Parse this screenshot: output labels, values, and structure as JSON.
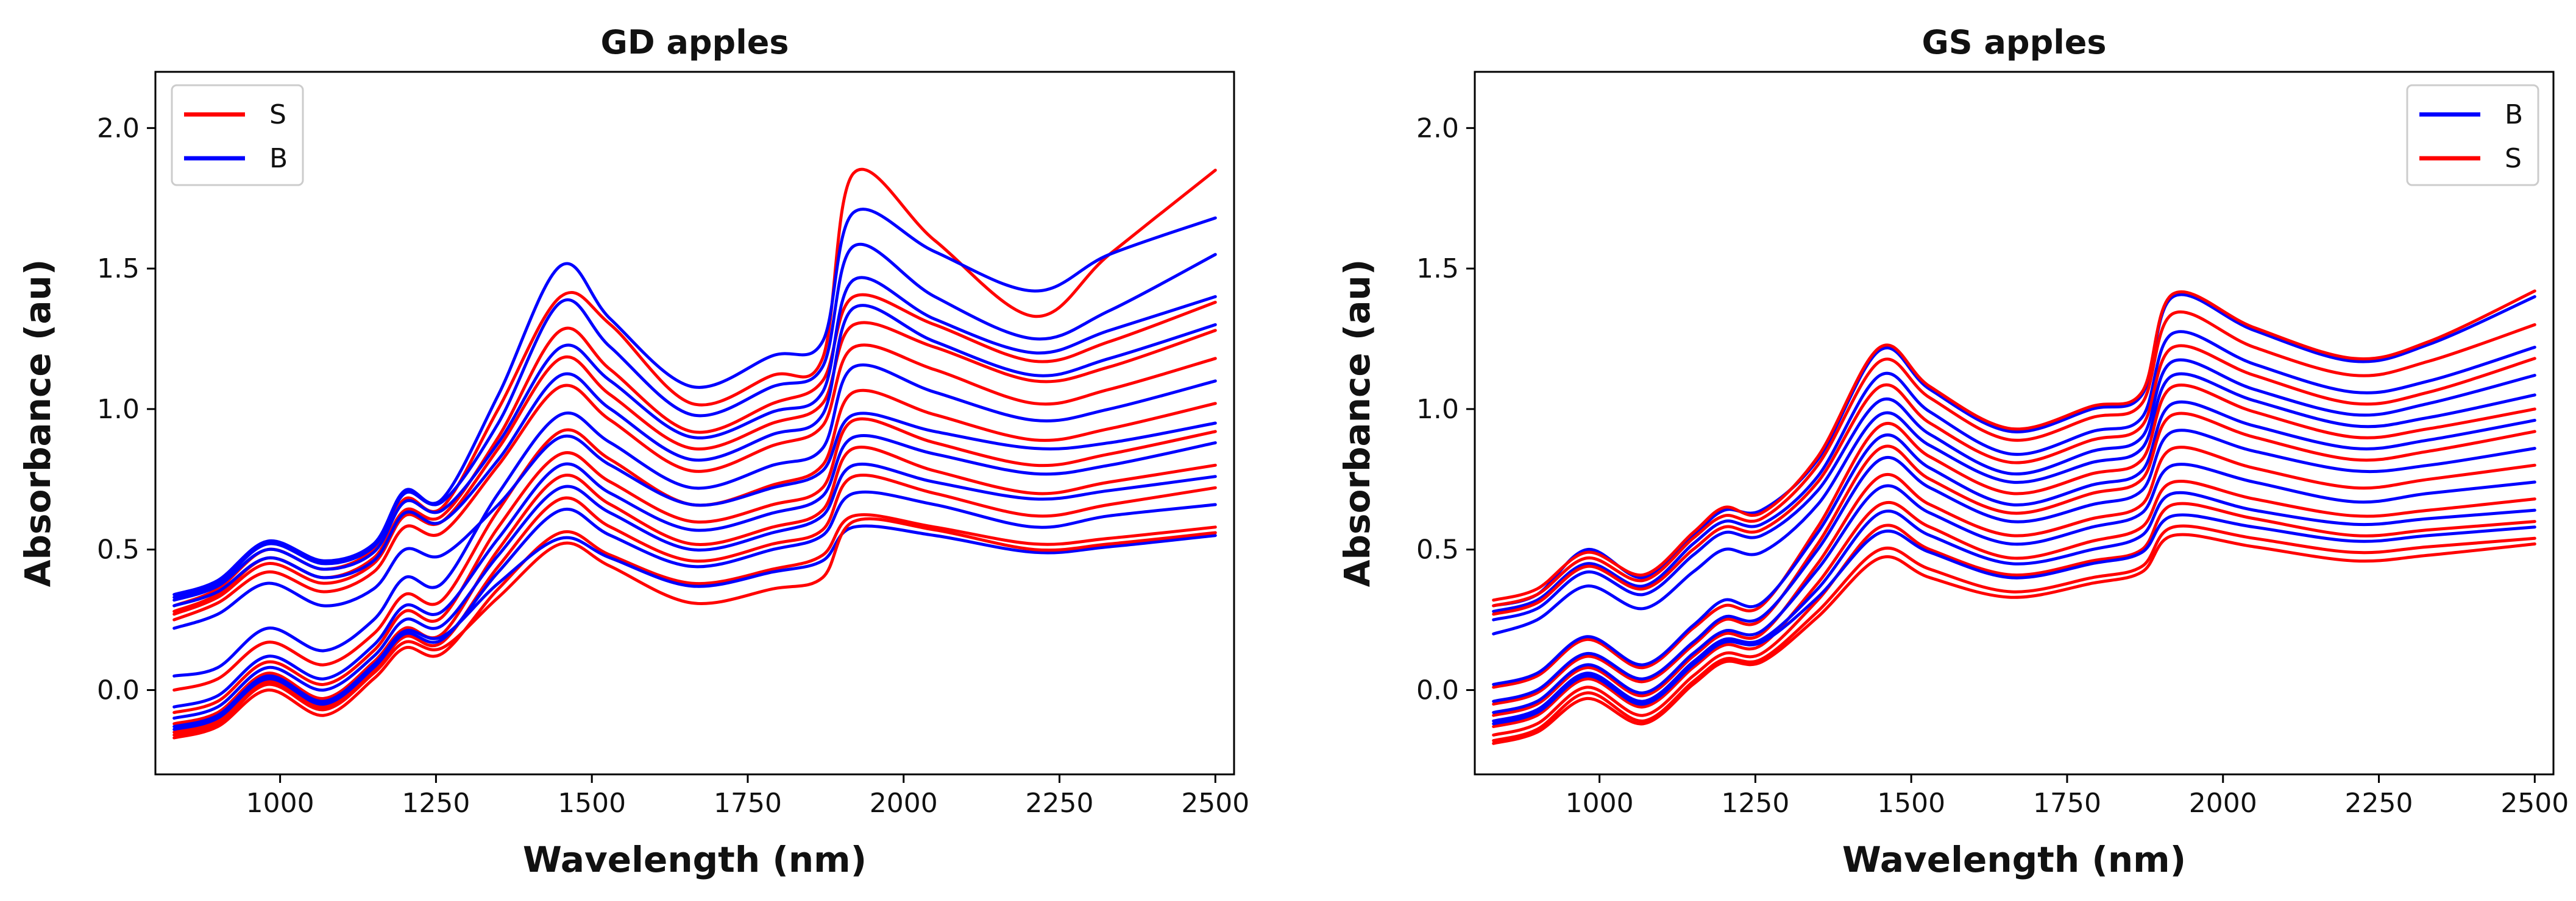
{
  "chart_data": [
    {
      "type": "line",
      "title": "GD apples",
      "xlabel": "Wavelength (nm)",
      "ylabel": "Absorbance (au)",
      "xlim": [
        800,
        2530
      ],
      "ylim": [
        -0.3,
        2.2
      ],
      "xticks": [
        1000,
        1250,
        1500,
        1750,
        2000,
        2250,
        2500
      ],
      "yticks": [
        0.0,
        0.5,
        1.0,
        1.5,
        2.0
      ],
      "xtick_labels": [
        "1000",
        "1250",
        "1500",
        "1750",
        "2000",
        "2250",
        "2500"
      ],
      "ytick_labels": [
        "0.0",
        "0.5",
        "1.0",
        "1.5",
        "2.0"
      ],
      "legend_position": "top-left",
      "legend": [
        {
          "label": "S",
          "color": "#ff0000"
        },
        {
          "label": "B",
          "color": "#0000ff"
        }
      ],
      "wavelengths": [
        830,
        900,
        980,
        1070,
        1150,
        1200,
        1260,
        1350,
        1450,
        1530,
        1660,
        1790,
        1870,
        1920,
        2050,
        2210,
        2330,
        2500
      ],
      "series": [
        {
          "name": "S",
          "color": "#ff0000",
          "values": [
            0.3,
            0.36,
            0.5,
            0.43,
            0.5,
            0.68,
            0.65,
            1.0,
            1.4,
            1.3,
            1.02,
            1.12,
            1.18,
            1.84,
            1.6,
            1.33,
            1.55,
            1.85
          ]
        },
        {
          "name": "B",
          "color": "#0000ff",
          "values": [
            0.34,
            0.39,
            0.53,
            0.46,
            0.52,
            0.71,
            0.68,
            1.05,
            1.51,
            1.32,
            1.08,
            1.19,
            1.24,
            1.7,
            1.56,
            1.42,
            1.55,
            1.68
          ]
        },
        {
          "name": "B",
          "color": "#0000ff",
          "values": [
            0.33,
            0.38,
            0.52,
            0.45,
            0.51,
            0.7,
            0.67,
            0.95,
            1.38,
            1.22,
            0.98,
            1.08,
            1.15,
            1.58,
            1.4,
            1.25,
            1.35,
            1.55
          ]
        },
        {
          "name": "S",
          "color": "#ff0000",
          "values": [
            0.28,
            0.34,
            0.47,
            0.4,
            0.47,
            0.64,
            0.62,
            0.9,
            1.28,
            1.14,
            0.92,
            1.02,
            1.1,
            1.4,
            1.3,
            1.17,
            1.24,
            1.38
          ]
        },
        {
          "name": "B",
          "color": "#0000ff",
          "values": [
            0.32,
            0.37,
            0.5,
            0.43,
            0.49,
            0.67,
            0.64,
            0.88,
            1.22,
            1.1,
            0.9,
            0.99,
            1.06,
            1.46,
            1.32,
            1.2,
            1.28,
            1.4
          ]
        },
        {
          "name": "S",
          "color": "#ff0000",
          "values": [
            0.27,
            0.33,
            0.45,
            0.38,
            0.45,
            0.62,
            0.6,
            0.86,
            1.18,
            1.05,
            0.86,
            0.95,
            1.02,
            1.3,
            1.22,
            1.1,
            1.15,
            1.28
          ]
        },
        {
          "name": "B",
          "color": "#0000ff",
          "values": [
            0.3,
            0.35,
            0.47,
            0.4,
            0.46,
            0.63,
            0.6,
            0.82,
            1.12,
            1.0,
            0.82,
            0.91,
            0.98,
            1.36,
            1.24,
            1.12,
            1.18,
            1.3
          ]
        },
        {
          "name": "S",
          "color": "#ff0000",
          "values": [
            0.25,
            0.31,
            0.42,
            0.35,
            0.42,
            0.58,
            0.56,
            0.8,
            1.08,
            0.96,
            0.78,
            0.87,
            0.94,
            1.22,
            1.14,
            1.02,
            1.07,
            1.18
          ]
        },
        {
          "name": "B",
          "color": "#0000ff",
          "values": [
            0.05,
            0.08,
            0.22,
            0.14,
            0.25,
            0.4,
            0.38,
            0.7,
            0.98,
            0.88,
            0.72,
            0.8,
            0.86,
            1.15,
            1.06,
            0.96,
            1.0,
            1.1
          ]
        },
        {
          "name": "S",
          "color": "#ff0000",
          "values": [
            0.0,
            0.04,
            0.17,
            0.09,
            0.2,
            0.34,
            0.32,
            0.64,
            0.92,
            0.82,
            0.66,
            0.73,
            0.8,
            1.06,
            0.98,
            0.89,
            0.93,
            1.02
          ]
        },
        {
          "name": "B",
          "color": "#0000ff",
          "values": [
            0.22,
            0.27,
            0.38,
            0.3,
            0.36,
            0.5,
            0.48,
            0.66,
            0.9,
            0.8,
            0.66,
            0.72,
            0.78,
            0.98,
            0.92,
            0.86,
            0.88,
            0.95
          ]
        },
        {
          "name": "S",
          "color": "#ff0000",
          "values": [
            -0.08,
            -0.04,
            0.1,
            0.02,
            0.14,
            0.28,
            0.26,
            0.58,
            0.84,
            0.74,
            0.6,
            0.66,
            0.72,
            0.96,
            0.88,
            0.8,
            0.84,
            0.92
          ]
        },
        {
          "name": "B",
          "color": "#0000ff",
          "values": [
            -0.06,
            -0.02,
            0.12,
            0.04,
            0.16,
            0.3,
            0.28,
            0.54,
            0.8,
            0.7,
            0.57,
            0.63,
            0.69,
            0.9,
            0.84,
            0.77,
            0.8,
            0.88
          ]
        },
        {
          "name": "S",
          "color": "#ff0000",
          "values": [
            -0.12,
            -0.08,
            0.06,
            -0.03,
            0.1,
            0.22,
            0.2,
            0.5,
            0.76,
            0.66,
            0.52,
            0.58,
            0.64,
            0.86,
            0.78,
            0.7,
            0.74,
            0.8
          ]
        },
        {
          "name": "B",
          "color": "#0000ff",
          "values": [
            -0.1,
            -0.06,
            0.08,
            0.0,
            0.12,
            0.25,
            0.23,
            0.48,
            0.72,
            0.63,
            0.5,
            0.56,
            0.62,
            0.8,
            0.74,
            0.68,
            0.71,
            0.76
          ]
        },
        {
          "name": "S",
          "color": "#ff0000",
          "values": [
            -0.15,
            -0.11,
            0.03,
            -0.06,
            0.07,
            0.19,
            0.17,
            0.44,
            0.68,
            0.58,
            0.46,
            0.52,
            0.57,
            0.76,
            0.7,
            0.62,
            0.66,
            0.72
          ]
        },
        {
          "name": "B",
          "color": "#0000ff",
          "values": [
            -0.14,
            -0.1,
            0.04,
            -0.05,
            0.08,
            0.2,
            0.18,
            0.42,
            0.64,
            0.55,
            0.44,
            0.5,
            0.55,
            0.7,
            0.66,
            0.58,
            0.62,
            0.66
          ]
        },
        {
          "name": "S",
          "color": "#ff0000",
          "values": [
            -0.17,
            -0.13,
            0.0,
            -0.09,
            0.04,
            0.15,
            0.13,
            0.36,
            0.56,
            0.48,
            0.38,
            0.43,
            0.48,
            0.62,
            0.58,
            0.52,
            0.54,
            0.58
          ]
        },
        {
          "name": "B",
          "color": "#0000ff",
          "values": [
            -0.13,
            -0.09,
            0.05,
            -0.04,
            0.09,
            0.21,
            0.19,
            0.38,
            0.54,
            0.47,
            0.37,
            0.42,
            0.46,
            0.58,
            0.55,
            0.49,
            0.51,
            0.55
          ]
        },
        {
          "name": "S",
          "color": "#ff0000",
          "values": [
            -0.16,
            -0.12,
            0.02,
            -0.07,
            0.06,
            0.17,
            0.15,
            0.33,
            0.52,
            0.44,
            0.31,
            0.36,
            0.4,
            0.6,
            0.57,
            0.5,
            0.52,
            0.56
          ]
        }
      ]
    },
    {
      "type": "line",
      "title": "GS apples",
      "xlabel": "Wavelength (nm)",
      "ylabel": "Absorbance (au)",
      "xlim": [
        800,
        2530
      ],
      "ylim": [
        -0.3,
        2.2
      ],
      "xticks": [
        1000,
        1250,
        1500,
        1750,
        2000,
        2250,
        2500
      ],
      "yticks": [
        0.0,
        0.5,
        1.0,
        1.5,
        2.0
      ],
      "xtick_labels": [
        "1000",
        "1250",
        "1500",
        "1750",
        "2000",
        "2250",
        "2500"
      ],
      "ytick_labels": [
        "0.0",
        "0.5",
        "1.0",
        "1.5",
        "2.0"
      ],
      "legend_position": "top-right",
      "legend": [
        {
          "label": "B",
          "color": "#0000ff"
        },
        {
          "label": "S",
          "color": "#ff0000"
        }
      ],
      "wavelengths": [
        830,
        900,
        980,
        1070,
        1150,
        1200,
        1260,
        1350,
        1450,
        1530,
        1660,
        1790,
        1870,
        1920,
        2050,
        2210,
        2330,
        2500
      ],
      "series": [
        {
          "name": "B",
          "color": "#0000ff",
          "values": [
            0.3,
            0.34,
            0.5,
            0.4,
            0.55,
            0.64,
            0.64,
            0.82,
            1.21,
            1.07,
            0.92,
            1.0,
            1.05,
            1.4,
            1.28,
            1.17,
            1.23,
            1.4
          ]
        },
        {
          "name": "S",
          "color": "#ff0000",
          "values": [
            0.32,
            0.36,
            0.49,
            0.41,
            0.56,
            0.65,
            0.63,
            0.83,
            1.22,
            1.08,
            0.93,
            1.01,
            1.06,
            1.41,
            1.29,
            1.18,
            1.24,
            1.42
          ]
        },
        {
          "name": "S",
          "color": "#ff0000",
          "values": [
            0.3,
            0.34,
            0.47,
            0.39,
            0.54,
            0.62,
            0.61,
            0.8,
            1.17,
            1.04,
            0.89,
            0.97,
            1.02,
            1.34,
            1.22,
            1.12,
            1.17,
            1.3
          ]
        },
        {
          "name": "B",
          "color": "#0000ff",
          "values": [
            0.28,
            0.32,
            0.45,
            0.37,
            0.52,
            0.6,
            0.59,
            0.76,
            1.12,
            0.99,
            0.84,
            0.92,
            0.97,
            1.27,
            1.16,
            1.06,
            1.1,
            1.22
          ]
        },
        {
          "name": "S",
          "color": "#ff0000",
          "values": [
            0.27,
            0.31,
            0.44,
            0.36,
            0.5,
            0.58,
            0.57,
            0.74,
            1.08,
            0.95,
            0.81,
            0.89,
            0.94,
            1.22,
            1.12,
            1.02,
            1.06,
            1.18
          ]
        },
        {
          "name": "B",
          "color": "#0000ff",
          "values": [
            0.25,
            0.29,
            0.42,
            0.34,
            0.48,
            0.56,
            0.55,
            0.71,
            1.03,
            0.91,
            0.77,
            0.85,
            0.9,
            1.17,
            1.07,
            0.98,
            1.02,
            1.12
          ]
        },
        {
          "name": "B",
          "color": "#0000ff",
          "values": [
            0.2,
            0.25,
            0.37,
            0.29,
            0.42,
            0.5,
            0.49,
            0.66,
            0.98,
            0.87,
            0.74,
            0.81,
            0.86,
            1.12,
            1.03,
            0.94,
            0.97,
            1.05
          ]
        },
        {
          "name": "S",
          "color": "#ff0000",
          "values": [
            0.01,
            0.05,
            0.18,
            0.08,
            0.22,
            0.3,
            0.3,
            0.58,
            0.94,
            0.83,
            0.7,
            0.77,
            0.82,
            1.08,
            0.99,
            0.9,
            0.93,
            1.0
          ]
        },
        {
          "name": "B",
          "color": "#0000ff",
          "values": [
            0.02,
            0.06,
            0.19,
            0.09,
            0.23,
            0.32,
            0.31,
            0.56,
            0.9,
            0.79,
            0.66,
            0.73,
            0.78,
            1.02,
            0.94,
            0.86,
            0.89,
            0.96
          ]
        },
        {
          "name": "S",
          "color": "#ff0000",
          "values": [
            -0.05,
            -0.01,
            0.12,
            0.03,
            0.16,
            0.25,
            0.25,
            0.52,
            0.86,
            0.75,
            0.63,
            0.7,
            0.75,
            0.98,
            0.9,
            0.82,
            0.85,
            0.92
          ]
        },
        {
          "name": "B",
          "color": "#0000ff",
          "values": [
            -0.04,
            0.0,
            0.13,
            0.04,
            0.17,
            0.26,
            0.26,
            0.5,
            0.82,
            0.72,
            0.6,
            0.66,
            0.71,
            0.92,
            0.85,
            0.78,
            0.8,
            0.86
          ]
        },
        {
          "name": "S",
          "color": "#ff0000",
          "values": [
            -0.09,
            -0.05,
            0.08,
            -0.02,
            0.12,
            0.2,
            0.2,
            0.45,
            0.76,
            0.66,
            0.55,
            0.61,
            0.66,
            0.86,
            0.79,
            0.72,
            0.75,
            0.8
          ]
        },
        {
          "name": "B",
          "color": "#0000ff",
          "values": [
            -0.08,
            -0.04,
            0.09,
            -0.01,
            0.13,
            0.21,
            0.21,
            0.43,
            0.72,
            0.63,
            0.52,
            0.58,
            0.63,
            0.8,
            0.74,
            0.67,
            0.7,
            0.74
          ]
        },
        {
          "name": "S",
          "color": "#ff0000",
          "values": [
            -0.13,
            -0.09,
            0.04,
            -0.06,
            0.08,
            0.16,
            0.16,
            0.38,
            0.66,
            0.58,
            0.47,
            0.53,
            0.58,
            0.74,
            0.68,
            0.62,
            0.64,
            0.68
          ]
        },
        {
          "name": "B",
          "color": "#0000ff",
          "values": [
            -0.11,
            -0.07,
            0.06,
            -0.04,
            0.1,
            0.18,
            0.18,
            0.36,
            0.63,
            0.55,
            0.45,
            0.5,
            0.55,
            0.7,
            0.64,
            0.59,
            0.61,
            0.64
          ]
        },
        {
          "name": "S",
          "color": "#ff0000",
          "values": [
            -0.16,
            -0.12,
            0.01,
            -0.09,
            0.05,
            0.13,
            0.13,
            0.32,
            0.58,
            0.5,
            0.41,
            0.46,
            0.5,
            0.66,
            0.61,
            0.55,
            0.57,
            0.6
          ]
        },
        {
          "name": "B",
          "color": "#0000ff",
          "values": [
            -0.12,
            -0.08,
            0.05,
            -0.05,
            0.09,
            0.17,
            0.17,
            0.33,
            0.56,
            0.49,
            0.4,
            0.45,
            0.49,
            0.62,
            0.58,
            0.53,
            0.55,
            0.58
          ]
        },
        {
          "name": "S",
          "color": "#ff0000",
          "values": [
            -0.18,
            -0.14,
            -0.01,
            -0.11,
            0.03,
            0.11,
            0.11,
            0.28,
            0.5,
            0.43,
            0.35,
            0.4,
            0.44,
            0.58,
            0.54,
            0.49,
            0.51,
            0.54
          ]
        },
        {
          "name": "S",
          "color": "#ff0000",
          "values": [
            -0.19,
            -0.15,
            -0.03,
            -0.12,
            0.02,
            0.1,
            0.1,
            0.26,
            0.47,
            0.4,
            0.33,
            0.38,
            0.42,
            0.55,
            0.51,
            0.46,
            0.48,
            0.52
          ]
        }
      ]
    }
  ]
}
